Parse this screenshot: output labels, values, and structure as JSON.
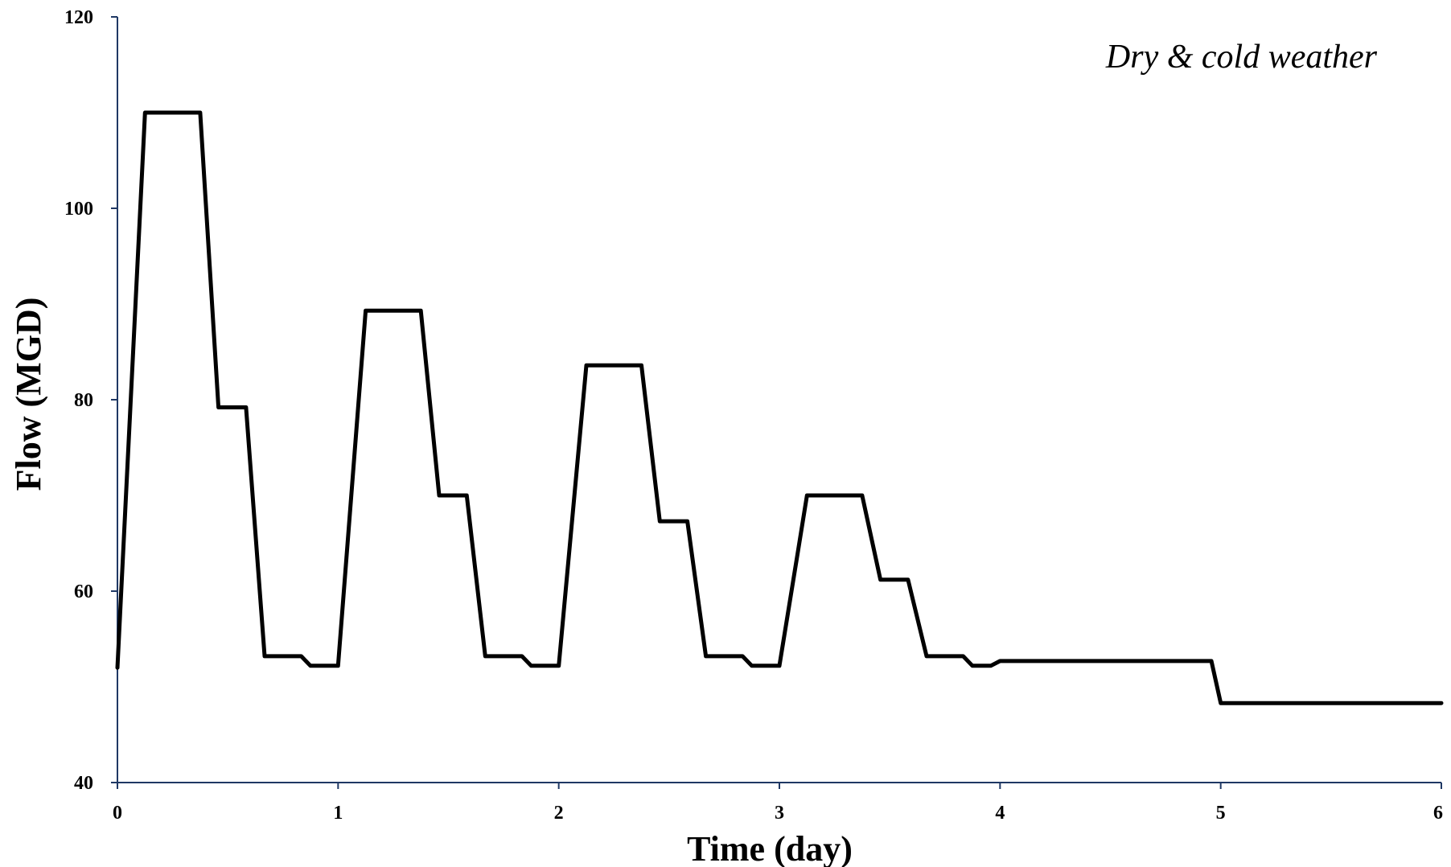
{
  "chart_data": {
    "type": "line",
    "title": "",
    "xlabel": "Time (day)",
    "ylabel": "Flow (MGD)",
    "xlim": [
      0,
      6
    ],
    "ylim": [
      40,
      120
    ],
    "xticks": [
      0,
      1,
      2,
      3,
      4,
      5,
      6
    ],
    "yticks": [
      40,
      60,
      80,
      100,
      120
    ],
    "grid": false,
    "legend": "none",
    "annotation": "Dry & cold weather",
    "line_color": "#000000",
    "axis_color": "#1f3864",
    "series": [
      {
        "x": [
          0,
          0.125,
          0.375,
          0.458,
          0.583,
          0.667,
          0.833,
          0.875,
          1.0,
          1.125,
          1.375,
          1.458,
          1.583,
          1.667,
          1.833,
          1.875,
          2.0,
          2.125,
          2.375,
          2.458,
          2.583,
          2.667,
          2.833,
          2.875,
          3.0,
          3.083,
          3.125,
          3.375,
          3.458,
          3.583,
          3.667,
          3.833,
          3.875,
          3.958,
          4.0,
          4.958,
          5.0,
          6.0
        ],
        "y": [
          52,
          110,
          110,
          79.2,
          79.2,
          53.2,
          53.2,
          52.2,
          52.2,
          89.3,
          89.3,
          70.0,
          70.0,
          53.2,
          53.2,
          52.2,
          52.2,
          83.6,
          83.6,
          67.3,
          67.3,
          53.2,
          53.2,
          52.2,
          52.2,
          64.0,
          70.0,
          70.0,
          61.2,
          61.2,
          53.2,
          53.2,
          52.2,
          52.2,
          52.7,
          52.7,
          48.3,
          48.3
        ]
      }
    ]
  }
}
